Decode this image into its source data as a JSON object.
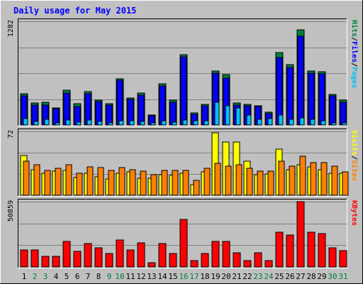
{
  "chart_data": {
    "type": "bar",
    "title": "Daily usage for May 2015",
    "categories": [
      "1",
      "2",
      "3",
      "4",
      "5",
      "6",
      "7",
      "8",
      "9",
      "10",
      "11",
      "12",
      "13",
      "14",
      "15",
      "16",
      "17",
      "18",
      "19",
      "20",
      "21",
      "22",
      "23",
      "24",
      "25",
      "26",
      "27",
      "28",
      "29",
      "30",
      "31"
    ],
    "weekend_days": [
      2,
      3,
      9,
      10,
      16,
      17,
      23,
      24,
      30,
      31
    ],
    "colors": {
      "background": "#c0c0c0",
      "panel": "#c0c0c0",
      "title": "#0000ff",
      "hits": "#008040",
      "files": "#0000ff",
      "pages": "#00c0ff",
      "visits": "#ffff00",
      "sites": "#ff8000",
      "kbytes": "#ff0000",
      "weekday_label": "#000000",
      "weekend_label": "#008040"
    },
    "panels": [
      {
        "id": "top",
        "max_label": "1282",
        "ymax": 1282,
        "legend": [
          {
            "text": "Pages",
            "color": "#00c0ff"
          },
          {
            "text": "/",
            "color": "#000000"
          },
          {
            "text": "Files",
            "color": "#0000ff"
          },
          {
            "text": "/",
            "color": "#000000"
          },
          {
            "text": "Hits",
            "color": "#008040"
          }
        ],
        "series": [
          {
            "name": "Hits",
            "color": "#008040",
            "values": [
              382,
              273,
              277,
              215,
              427,
              265,
              414,
              306,
              264,
              572,
              337,
              395,
              119,
              513,
              306,
              873,
              146,
              251,
              671,
              623,
              268,
              259,
              240,
              156,
              892,
              747,
              1180,
              666,
              661,
              380,
              308
            ]
          },
          {
            "name": "Files",
            "color": "#0000ff",
            "values": [
              357,
              244,
              244,
              200,
              397,
              232,
              388,
              291,
              248,
              557,
              319,
              370,
              111,
              486,
              283,
              843,
              131,
              236,
              640,
              580,
              248,
              234,
              228,
              143,
              838,
              715,
              1100,
              638,
              630,
              356,
              284
            ]
          },
          {
            "name": "Pages",
            "color": "#00c0ff",
            "values": [
              78,
              44,
              74,
              26,
              65,
              31,
              65,
              48,
              30,
              52,
              52,
              46,
              29,
              54,
              34,
              65,
              55,
              55,
              282,
              234,
              209,
              120,
              74,
              78,
              120,
              74,
              86,
              66,
              52,
              30,
              30
            ]
          }
        ]
      },
      {
        "id": "middle",
        "max_label": "72",
        "ymax": 72,
        "legend": [
          {
            "text": "Sites",
            "color": "#ff8000"
          },
          {
            "text": "/",
            "color": "#000000"
          },
          {
            "text": "Visits",
            "color": "#ffff00"
          }
        ],
        "series": [
          {
            "name": "Visits",
            "color": "#ffff00",
            "values": [
              45,
              29,
              25,
              27,
              28,
              20,
              25,
              21,
              18,
              25,
              26,
              19,
              19,
              23,
              22,
              25,
              12,
              26,
              70,
              60,
              60,
              38,
              23,
              24,
              52,
              29,
              34,
              32,
              29,
              25,
              25
            ]
          },
          {
            "name": "Sites",
            "color": "#ff8000",
            "values": [
              38,
              34,
              28,
              30,
              34,
              25,
              32,
              31,
              28,
              31,
              29,
              27,
              23,
              28,
              28,
              28,
              17,
              30,
              36,
              33,
              34,
              30,
              27,
              27,
              38,
              33,
              44,
              37,
              37,
              33,
              26
            ]
          }
        ]
      },
      {
        "id": "bottom",
        "max_label": "50859",
        "ymax": 50859,
        "legend": [
          {
            "text": "KBytes",
            "color": "#ff0000"
          }
        ],
        "series": [
          {
            "name": "KBytes",
            "color": "#ff0000",
            "values": [
              13000,
              13000,
              8500,
              8500,
              20000,
              12000,
              18000,
              15000,
              10500,
              21000,
              13000,
              19000,
              3500,
              18000,
              10500,
              37000,
              5000,
              10500,
              20000,
              20000,
              11000,
              5000,
              11000,
              5000,
              27000,
              25000,
              50859,
              27000,
              26000,
              15000,
              12500
            ]
          }
        ]
      }
    ]
  }
}
